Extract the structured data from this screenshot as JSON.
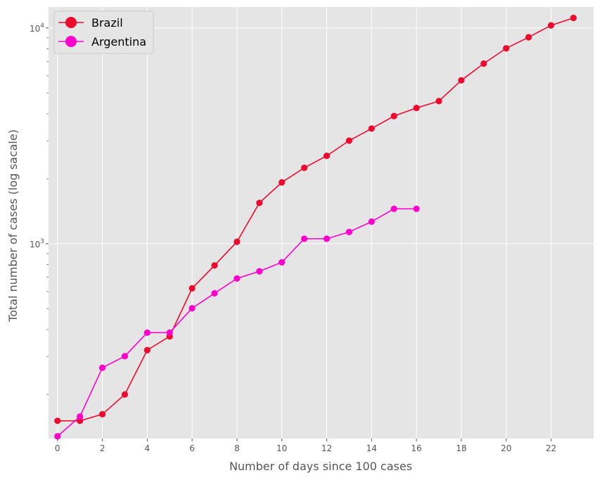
{
  "chart_data": {
    "type": "line",
    "xlabel": "Number of days since 100 cases",
    "ylabel": "Total number of cases  (log sacale)",
    "xlim": [
      -0.4,
      23.9
    ],
    "ylim": [
      125,
      12500
    ],
    "yscale": "log",
    "xticks": [
      0,
      2,
      4,
      6,
      8,
      10,
      12,
      14,
      16,
      18,
      20,
      22
    ],
    "xtick_labels": [
      "0",
      "2",
      "4",
      "6",
      "8",
      "10",
      "12",
      "14",
      "16",
      "18",
      "20",
      "22"
    ],
    "ymajor_ticks": [
      1000,
      10000
    ],
    "ytick_labels": [
      {
        "base": "10",
        "exp": "3"
      },
      {
        "base": "10",
        "exp": "4"
      }
    ],
    "grid": true,
    "legend_position": "top-left",
    "series": [
      {
        "name": "Brazil",
        "color": "#ee0a2e",
        "x": [
          0,
          1,
          2,
          3,
          4,
          5,
          6,
          7,
          8,
          9,
          10,
          11,
          12,
          13,
          14,
          15,
          16,
          17,
          18,
          19,
          20,
          21,
          22,
          23
        ],
        "values": [
          151,
          151,
          162,
          200,
          321,
          372,
          621,
          793,
          1021,
          1546,
          1924,
          2247,
          2554,
          3003,
          3417,
          3904,
          4256,
          4579,
          5717,
          6836,
          8044,
          9056,
          10278,
          11130
        ]
      },
      {
        "name": "Argentina",
        "color": "#ff00cc",
        "x": [
          0,
          1,
          2,
          3,
          4,
          5,
          6,
          7,
          8,
          9,
          10,
          11,
          12,
          13,
          14,
          15,
          16
        ],
        "values": [
          128,
          158,
          266,
          301,
          387,
          387,
          502,
          589,
          690,
          745,
          820,
          1054,
          1054,
          1133,
          1265,
          1451,
          1451
        ]
      }
    ]
  }
}
